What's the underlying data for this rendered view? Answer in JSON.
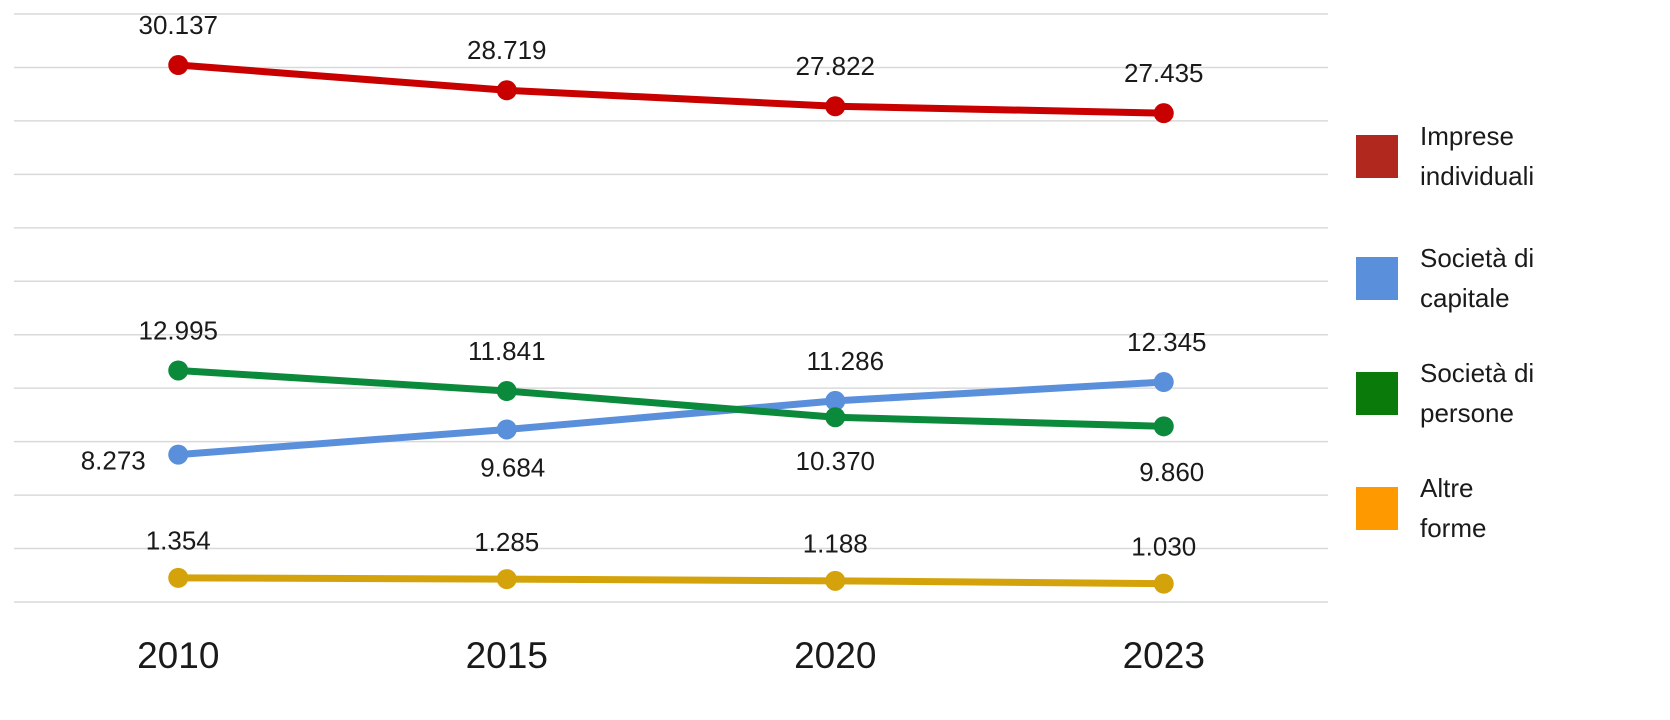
{
  "chart_data": {
    "type": "line",
    "categories": [
      "2010",
      "2015",
      "2020",
      "2023"
    ],
    "series": [
      {
        "name": "Imprese individuali",
        "color": "#c80000",
        "legend_color": "#b0281e",
        "values": [
          30137,
          28719,
          27822,
          27435
        ],
        "value_labels": [
          "30.137",
          "28.719",
          "27.822",
          "27.435"
        ]
      },
      {
        "name": "Società di capitale",
        "color": "#5a8fdc",
        "legend_color": "#5a8fdc",
        "values": [
          8273,
          9684,
          11286,
          12345
        ],
        "value_labels": [
          "8.273",
          "9.684",
          "11.286",
          "12.345"
        ]
      },
      {
        "name": "Società di persone",
        "color": "#0b8a3b",
        "legend_color": "#0a7a0a",
        "values": [
          12995,
          11841,
          10370,
          9860
        ],
        "value_labels": [
          "12.995",
          "11.841",
          "10.370",
          "9.860"
        ]
      },
      {
        "name": "Altre forme",
        "color": "#d4a30c",
        "legend_color": "#ff9900",
        "values": [
          1354,
          1285,
          1188,
          1030
        ],
        "value_labels": [
          "1.354",
          "1.285",
          "1.188",
          "1.030"
        ]
      }
    ],
    "ylim": [
      0,
      33000
    ],
    "yticks": [
      0,
      3000,
      6000,
      9000,
      12000,
      15000,
      18000,
      21000,
      24000,
      27000,
      30000,
      33000
    ],
    "grid": true
  }
}
